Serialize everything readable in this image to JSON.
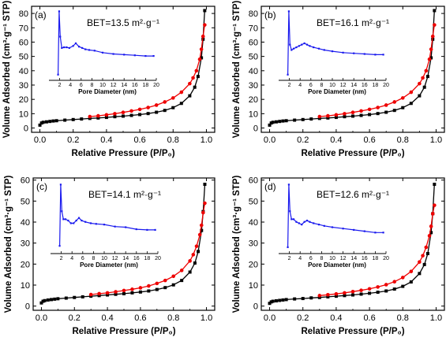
{
  "chart_data": [
    {
      "type": "line",
      "panel_label": "(a)",
      "annotation": "BET=13.5 m²·g⁻¹",
      "xlabel": "Relative Pressure (P/P₀)",
      "ylabel": "Volume Adsorbed (cm³·g⁻¹ STP)",
      "xlim": [
        -0.05,
        1.05
      ],
      "ylim": [
        -3,
        85
      ],
      "xticks": [
        "0.0",
        "0.2",
        "0.4",
        "0.6",
        "0.8",
        "1.0"
      ],
      "yticks": [
        "0",
        "10",
        "20",
        "30",
        "40",
        "50",
        "60",
        "70",
        "80"
      ],
      "series": [
        {
          "color": "#000000",
          "x": [
            0.0,
            0.01,
            0.02,
            0.04,
            0.06,
            0.08,
            0.1,
            0.15,
            0.2,
            0.25,
            0.3,
            0.35,
            0.4,
            0.45,
            0.5,
            0.55,
            0.6,
            0.65,
            0.7,
            0.75,
            0.8,
            0.85,
            0.9,
            0.93,
            0.95,
            0.97,
            0.98,
            0.99
          ],
          "y": [
            2.0,
            3.5,
            4.0,
            4.3,
            4.6,
            4.9,
            5.1,
            5.5,
            5.9,
            6.3,
            6.7,
            7.0,
            7.4,
            7.9,
            8.3,
            8.8,
            9.4,
            10.1,
            11.0,
            12.3,
            14.2,
            17.2,
            22.5,
            28.5,
            36,
            49,
            62,
            82
          ]
        },
        {
          "color": "#ee0000",
          "x": [
            0.3,
            0.35,
            0.4,
            0.45,
            0.5,
            0.55,
            0.6,
            0.65,
            0.7,
            0.75,
            0.8,
            0.85,
            0.9,
            0.92,
            0.94,
            0.96,
            0.97,
            0.98,
            0.99
          ],
          "y": [
            8.0,
            8.5,
            9.2,
            10.0,
            10.9,
            11.9,
            13.0,
            14.3,
            16.0,
            18.2,
            21.0,
            25.0,
            31.0,
            35.0,
            40.0,
            48.0,
            55.0,
            64.0,
            72.0
          ]
        }
      ],
      "inset": {
        "xlabel": "Pore Diameter (nm)",
        "xlim": [
          0,
          20
        ],
        "xticks": [
          "2",
          "4",
          "6",
          "8",
          "10",
          "12",
          "14",
          "16",
          "18",
          "20"
        ],
        "color": "#1a1aee",
        "x": [
          1.7,
          1.9,
          2.1,
          2.4,
          2.8,
          3.3,
          3.8,
          4.5,
          5.0,
          5.6,
          6.2,
          6.8,
          7.5,
          8.5,
          10,
          12,
          14,
          16,
          18,
          19.5
        ],
        "y": [
          5,
          100,
          62,
          45,
          46,
          46,
          45,
          48,
          52,
          47,
          45,
          43,
          42,
          41,
          38,
          36,
          35,
          34,
          33,
          33
        ],
        "ylim": [
          0,
          100
        ]
      }
    },
    {
      "type": "line",
      "panel_label": "(b)",
      "annotation": "BET=16.1 m²·g⁻¹",
      "xlabel": "Relative Pressure (P/P₀)",
      "ylabel": "Volume Adsorbed (cm³·g⁻¹ STP)",
      "xlim": [
        -0.05,
        1.05
      ],
      "ylim": [
        -3,
        85
      ],
      "xticks": [
        "0.0",
        "0.2",
        "0.4",
        "0.6",
        "0.8",
        "1.0"
      ],
      "yticks": [
        "0",
        "10",
        "20",
        "30",
        "40",
        "50",
        "60",
        "70",
        "80"
      ],
      "series": [
        {
          "color": "#000000",
          "x": [
            0.0,
            0.01,
            0.02,
            0.04,
            0.06,
            0.08,
            0.1,
            0.15,
            0.2,
            0.25,
            0.3,
            0.35,
            0.4,
            0.45,
            0.5,
            0.55,
            0.6,
            0.65,
            0.7,
            0.75,
            0.8,
            0.85,
            0.9,
            0.93,
            0.95,
            0.97,
            0.98,
            0.99
          ],
          "y": [
            2.0,
            3.5,
            4.0,
            4.3,
            4.6,
            4.9,
            5.1,
            5.5,
            5.9,
            6.3,
            6.7,
            7.0,
            7.4,
            7.9,
            8.3,
            8.8,
            9.4,
            10.1,
            11.0,
            12.3,
            14.2,
            17.2,
            22.5,
            28.5,
            36,
            49,
            62,
            82
          ]
        },
        {
          "color": "#ee0000",
          "x": [
            0.3,
            0.35,
            0.4,
            0.45,
            0.5,
            0.55,
            0.6,
            0.65,
            0.7,
            0.75,
            0.8,
            0.85,
            0.9,
            0.92,
            0.94,
            0.96,
            0.97,
            0.98,
            0.99
          ],
          "y": [
            8.0,
            8.5,
            9.2,
            10.0,
            10.9,
            11.9,
            13.0,
            14.3,
            16.0,
            18.2,
            21.0,
            25.0,
            31.0,
            35.0,
            40.0,
            48.0,
            55.0,
            64.0,
            72.0
          ]
        }
      ],
      "inset": {
        "xlabel": "Pore Diameter (nm)",
        "xlim": [
          0,
          20
        ],
        "xticks": [
          "2",
          "4",
          "6",
          "8",
          "10",
          "12",
          "14",
          "16",
          "18",
          "20"
        ],
        "color": "#1a1aee",
        "x": [
          1.7,
          1.9,
          2.1,
          2.4,
          2.8,
          3.3,
          3.8,
          4.3,
          4.8,
          5.3,
          5.8,
          6.5,
          7.5,
          8.5,
          10,
          12,
          14,
          16,
          18,
          19.5
        ],
        "y": [
          5,
          100,
          50,
          42,
          44,
          46,
          48,
          50,
          52,
          50,
          48,
          46,
          44,
          42,
          40,
          38,
          37,
          36,
          35,
          35
        ],
        "ylim": [
          0,
          100
        ]
      }
    },
    {
      "type": "line",
      "panel_label": "(c)",
      "annotation": "BET=14.1 m²·g⁻¹",
      "xlabel": "Relative Pressure (P/P₀)",
      "ylabel": "Volume Adsorbed (cm³·g⁻¹ STP)",
      "xlim": [
        -0.05,
        1.05
      ],
      "ylim": [
        -2,
        61
      ],
      "xticks": [
        "0.0",
        "0.2",
        "0.4",
        "0.6",
        "0.8",
        "1.0"
      ],
      "yticks": [
        "0",
        "10",
        "20",
        "30",
        "40",
        "50",
        "60"
      ],
      "series": [
        {
          "color": "#000000",
          "x": [
            0.0,
            0.01,
            0.02,
            0.04,
            0.06,
            0.08,
            0.1,
            0.15,
            0.2,
            0.25,
            0.3,
            0.35,
            0.4,
            0.45,
            0.5,
            0.55,
            0.6,
            0.65,
            0.7,
            0.75,
            0.8,
            0.85,
            0.9,
            0.93,
            0.95,
            0.97,
            0.98,
            0.99
          ],
          "y": [
            1.5,
            2.3,
            2.6,
            2.9,
            3.1,
            3.3,
            3.5,
            3.8,
            4.1,
            4.4,
            4.7,
            5.0,
            5.3,
            5.6,
            5.9,
            6.3,
            6.7,
            7.2,
            7.9,
            8.8,
            10.1,
            12.2,
            16.2,
            20.5,
            26,
            36,
            45,
            58
          ]
        },
        {
          "color": "#ee0000",
          "x": [
            0.3,
            0.35,
            0.4,
            0.45,
            0.5,
            0.55,
            0.6,
            0.65,
            0.7,
            0.75,
            0.8,
            0.85,
            0.9,
            0.92,
            0.94,
            0.96,
            0.97,
            0.98,
            0.99
          ],
          "y": [
            5.5,
            5.9,
            6.3,
            6.8,
            7.4,
            8.0,
            8.7,
            9.6,
            10.8,
            12.2,
            14.2,
            17.0,
            21.5,
            24.5,
            28.5,
            34.0,
            38.5,
            44.5,
            49.0
          ]
        }
      ],
      "inset": {
        "xlabel": "Pore Diameter (nm)",
        "xlim": [
          0,
          20
        ],
        "xticks": [
          "2",
          "4",
          "6",
          "8",
          "10",
          "12",
          "14",
          "16",
          "18",
          "20"
        ],
        "color": "#1a1aee",
        "x": [
          1.7,
          1.9,
          2.1,
          2.4,
          2.8,
          3.3,
          3.8,
          4.3,
          4.8,
          5.3,
          5.8,
          6.5,
          7.5,
          8.5,
          10,
          12,
          14,
          16,
          18,
          19.5
        ],
        "y": [
          8,
          100,
          60,
          48,
          48,
          46,
          42,
          42,
          46,
          50,
          46,
          44,
          42,
          41,
          40,
          37,
          36,
          33,
          32,
          32
        ],
        "ylim": [
          0,
          100
        ]
      }
    },
    {
      "type": "line",
      "panel_label": "(d)",
      "annotation": "BET=12.6 m²·g⁻¹",
      "xlabel": "Relative Pressure (P/P₀)",
      "ylabel": "Volume Adsorbed (cm³·g⁻¹ STP)",
      "xlim": [
        -0.05,
        1.05
      ],
      "ylim": [
        -2,
        61
      ],
      "xticks": [
        "0.0",
        "0.2",
        "0.4",
        "0.6",
        "0.8",
        "1.0"
      ],
      "yticks": [
        "0",
        "10",
        "20",
        "30",
        "40",
        "50",
        "60"
      ],
      "series": [
        {
          "color": "#000000",
          "x": [
            0.0,
            0.01,
            0.02,
            0.04,
            0.06,
            0.08,
            0.1,
            0.15,
            0.2,
            0.25,
            0.3,
            0.35,
            0.4,
            0.45,
            0.5,
            0.55,
            0.6,
            0.65,
            0.7,
            0.75,
            0.8,
            0.85,
            0.9,
            0.93,
            0.95,
            0.97,
            0.98,
            0.99
          ],
          "y": [
            1.3,
            2.0,
            2.3,
            2.5,
            2.7,
            2.9,
            3.1,
            3.4,
            3.6,
            3.9,
            4.1,
            4.4,
            4.7,
            5.0,
            5.3,
            5.7,
            6.1,
            6.6,
            7.2,
            8.1,
            9.4,
            11.5,
            15.5,
            19.8,
            25,
            35,
            44,
            58
          ]
        },
        {
          "color": "#ee0000",
          "x": [
            0.3,
            0.35,
            0.4,
            0.45,
            0.5,
            0.55,
            0.6,
            0.65,
            0.7,
            0.75,
            0.8,
            0.85,
            0.9,
            0.92,
            0.94,
            0.96,
            0.97,
            0.98,
            0.99
          ],
          "y": [
            5.0,
            5.4,
            5.8,
            6.3,
            6.9,
            7.5,
            8.2,
            9.1,
            10.2,
            11.6,
            13.6,
            16.5,
            21.0,
            24.0,
            28.0,
            33.5,
            38.0,
            44.0,
            48.0
          ]
        }
      ],
      "inset": {
        "xlabel": "Pore Diameter (nm)",
        "xlim": [
          0,
          20
        ],
        "xticks": [
          "2",
          "4",
          "6",
          "8",
          "10",
          "12",
          "14",
          "16",
          "18",
          "20"
        ],
        "color": "#1a1aee",
        "x": [
          1.7,
          1.9,
          2.1,
          2.4,
          2.8,
          3.3,
          3.8,
          4.3,
          4.8,
          5.3,
          5.8,
          6.5,
          7.5,
          8.5,
          10,
          12,
          14,
          16,
          18,
          19.5
        ],
        "y": [
          6,
          100,
          60,
          48,
          48,
          44,
          42,
          40,
          44,
          46,
          44,
          42,
          40,
          38,
          36,
          34,
          32,
          30,
          28,
          28
        ],
        "ylim": [
          0,
          100
        ]
      }
    }
  ]
}
